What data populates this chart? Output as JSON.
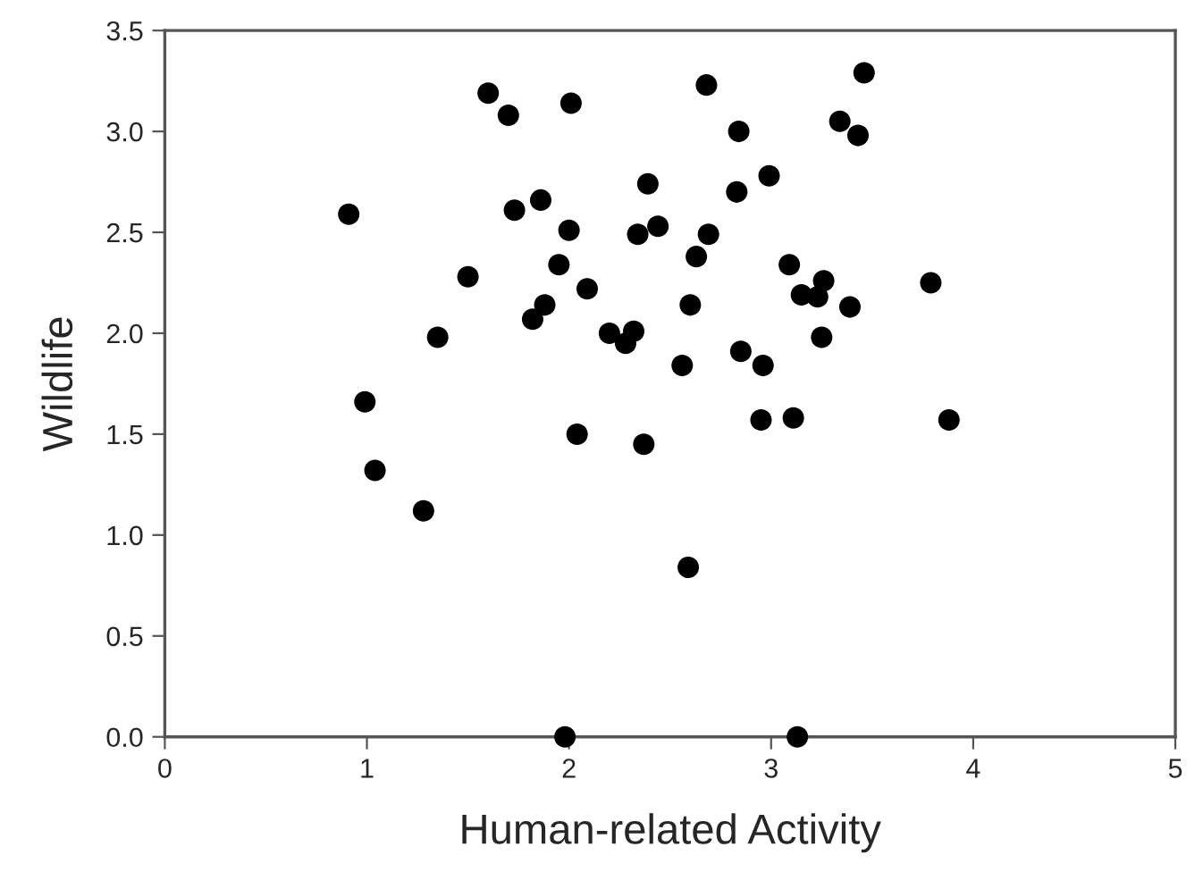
{
  "chart_data": {
    "type": "scatter",
    "xlabel": "Human-related Activity",
    "ylabel": "Wildlife",
    "x": [
      0.91,
      0.99,
      1.04,
      1.28,
      1.35,
      1.5,
      1.6,
      1.7,
      1.73,
      1.82,
      1.86,
      1.88,
      1.95,
      1.98,
      2.01,
      2.0,
      2.04,
      2.09,
      2.2,
      2.28,
      2.32,
      2.34,
      2.39,
      2.37,
      2.44,
      2.56,
      2.6,
      2.59,
      2.63,
      2.68,
      2.69,
      2.83,
      2.84,
      2.85,
      2.95,
      2.96,
      2.99,
      3.09,
      3.11,
      3.13,
      3.15,
      3.23,
      3.26,
      3.25,
      3.34,
      3.39,
      3.43,
      3.46,
      3.79,
      3.88
    ],
    "series": [
      {
        "color": "#000000",
        "values": [
          2.59,
          1.66,
          1.32,
          1.12,
          1.98,
          2.28,
          3.19,
          3.08,
          2.61,
          2.07,
          2.66,
          2.14,
          2.34,
          0.0,
          3.14,
          2.51,
          1.5,
          2.22,
          2.0,
          1.95,
          2.01,
          2.49,
          2.74,
          1.45,
          2.53,
          1.84,
          2.14,
          0.84,
          2.38,
          3.23,
          2.49,
          2.7,
          3.0,
          1.91,
          1.57,
          1.84,
          2.78,
          2.34,
          1.58,
          0.0,
          2.19,
          2.18,
          2.26,
          1.98,
          3.05,
          2.13,
          2.98,
          3.29,
          2.25,
          1.57
        ]
      }
    ],
    "marker": "circle",
    "xlim": [
      0,
      5
    ],
    "xticks": [
      0,
      1,
      2,
      3,
      4,
      5
    ],
    "ylim": [
      0,
      3.5
    ],
    "yticks": [
      {
        "value": 0,
        "label": "0.0"
      },
      {
        "value": 0.5,
        "label": "0.5"
      },
      {
        "value": 1,
        "label": "1.0"
      },
      {
        "value": 1.5,
        "label": "1.5"
      },
      {
        "value": 2,
        "label": "2.0"
      },
      {
        "value": 2.5,
        "label": "2.5"
      },
      {
        "value": 3,
        "label": "3.0"
      },
      {
        "value": 3.5,
        "label": "3.5"
      }
    ],
    "grid": false
  }
}
